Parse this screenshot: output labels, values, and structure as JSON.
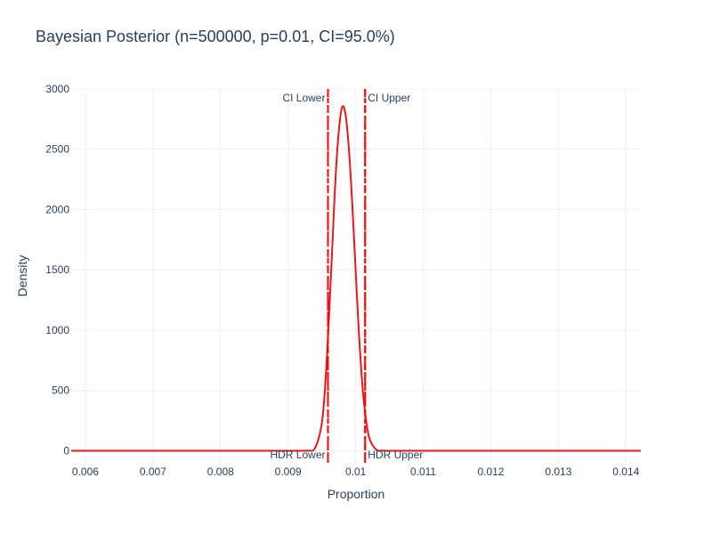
{
  "chart_data": {
    "type": "line",
    "title": "Bayesian Posterior (n=500000, p=0.01, CI=95.0%)",
    "xlabel": "Proportion",
    "ylabel": "Density",
    "xlim": [
      0.00579,
      0.01422
    ],
    "ylim": [
      -100,
      3000
    ],
    "x_ticks": [
      0.006,
      0.007,
      0.008,
      0.009,
      0.01,
      0.011,
      0.012,
      0.013,
      0.014
    ],
    "x_tick_labels": [
      "0.006",
      "0.007",
      "0.008",
      "0.009",
      "0.01",
      "0.011",
      "0.012",
      "0.013",
      "0.014"
    ],
    "y_ticks": [
      0,
      500,
      1000,
      1500,
      2000,
      2500,
      3000
    ],
    "y_tick_labels": [
      "0",
      "500",
      "1000",
      "1500",
      "2000",
      "2500",
      "3000"
    ],
    "grid": true,
    "series": [
      {
        "color": "#e31a1c",
        "x": [
          0.00579,
          0.009,
          0.0093,
          0.0094,
          0.0095,
          0.00955,
          0.0096,
          0.00965,
          0.0097,
          0.00975,
          0.0098,
          0.00985,
          0.0099,
          0.00995,
          0.01,
          0.01005,
          0.0101,
          0.01015,
          0.0102,
          0.0103,
          0.0104,
          0.0107,
          0.01422
        ],
        "y": [
          0,
          0,
          1,
          24,
          231,
          550,
          1050,
          1640,
          2240,
          2650,
          2850,
          2790,
          2500,
          2040,
          1490,
          960,
          540,
          270,
          110,
          12,
          0.5,
          0,
          0
        ]
      }
    ],
    "vlines": [
      {
        "name": "CI Lower",
        "x": 0.00959,
        "color": "#ff0000",
        "style": "dash-dot",
        "label": "CI Lower",
        "label_position": "top-left"
      },
      {
        "name": "CI Upper",
        "x": 0.01014,
        "color": "#ff0000",
        "style": "dash-dot",
        "label": "CI Upper",
        "label_position": "top-right"
      },
      {
        "name": "HDR Lower",
        "x": 0.00959,
        "color": "#ff0000",
        "style": "dash",
        "label": "HDR Lower",
        "label_position": "bottom-left"
      },
      {
        "name": "HDR Upper",
        "x": 0.01014,
        "color": "#ff0000",
        "style": "dash",
        "label": "HDR Upper",
        "label_position": "bottom-right"
      }
    ]
  }
}
